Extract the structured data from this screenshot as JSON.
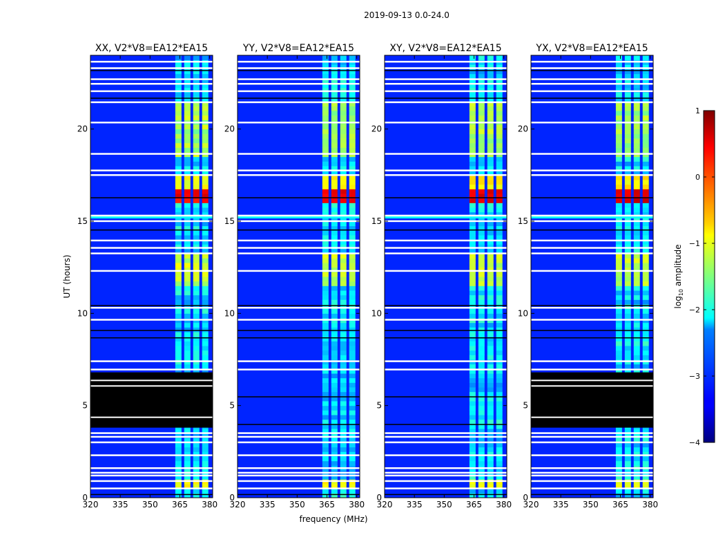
{
  "figure": {
    "suptitle": "2019-09-13 0.0-24.0"
  },
  "chart_data": {
    "type": "heatmap",
    "xlabel": "frequency (MHz)",
    "ylabel": "UT (hours)",
    "xlim": [
      320,
      381.5
    ],
    "ylim": [
      0,
      24
    ],
    "xticks": [
      320,
      335,
      350,
      365,
      380
    ],
    "yticks": [
      0,
      5,
      10,
      15,
      20
    ],
    "panels": [
      {
        "title": "XX, V2*V8=EA12*EA15",
        "black_block": true
      },
      {
        "title": "YY, V2*V8=EA12*EA15",
        "black_block": false
      },
      {
        "title": "XY, V2*V8=EA12*EA15",
        "black_block": false
      },
      {
        "title": "YX, V2*V8=EA12*EA15",
        "black_block": true
      }
    ],
    "colorbar": {
      "label": "log10 amplitude",
      "label_main": "log",
      "label_sub": "10",
      "label_rest": " amplitude",
      "min": -4,
      "max": 1,
      "ticks": [
        -4,
        -3,
        -2,
        -1,
        0,
        1
      ],
      "tick_labels": [
        "−4",
        "−3",
        "−2",
        "−1",
        "0",
        "1"
      ],
      "colormap": "jet"
    },
    "features": {
      "background_level": -3.2,
      "rfi_band_mhz": [
        362,
        380
      ],
      "strong_rfi_hours": [
        16.0,
        17.5
      ],
      "strong_rfi_level": 0.6,
      "moderate_rfi_level": -1.5,
      "flagged_black_hours": [
        3.8,
        6.8
      ],
      "cyan_stripe_hour": 15.2
    }
  }
}
